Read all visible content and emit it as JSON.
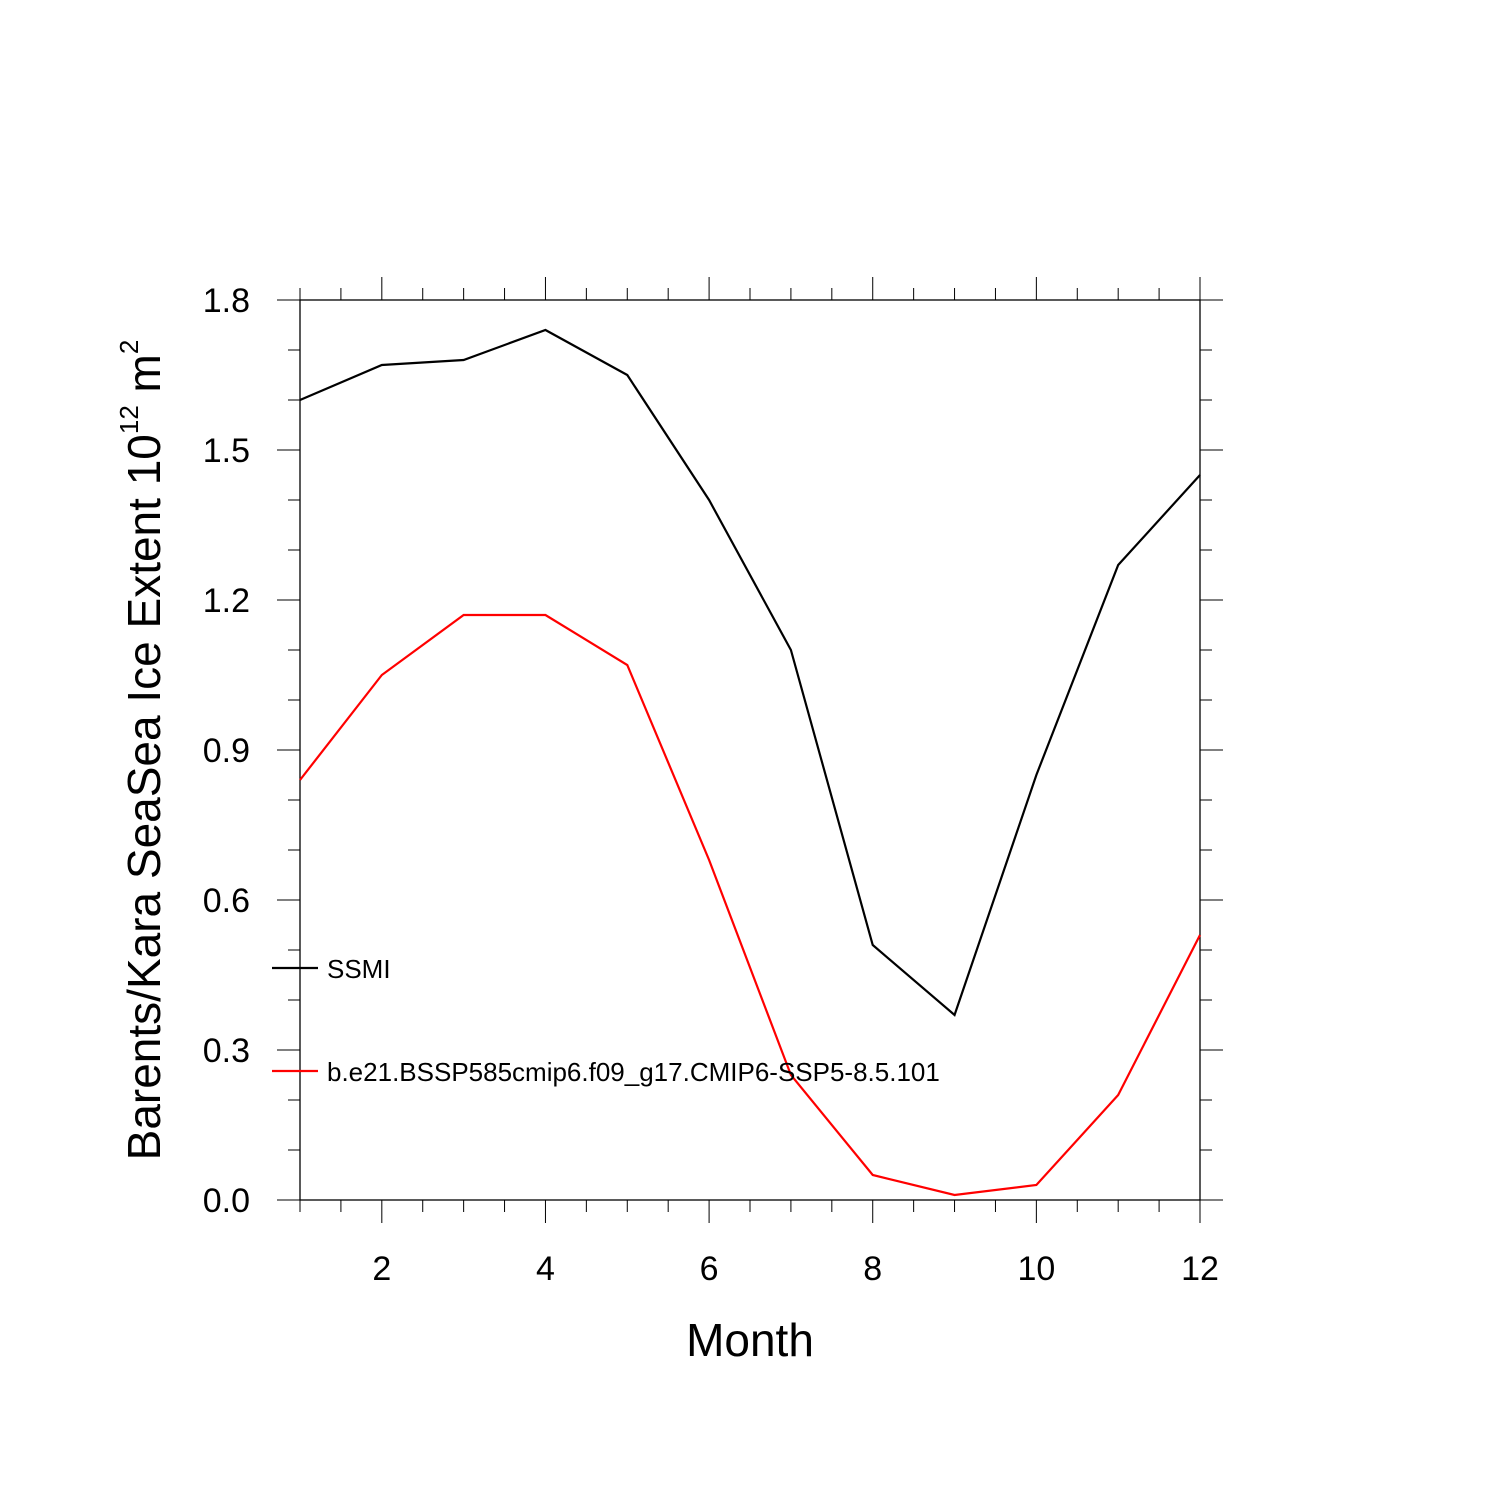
{
  "chart_data": {
    "type": "line",
    "xlabel": "Month",
    "ylabel": [
      "Barents/Kara SeaSea Ice Extent 10",
      "12",
      " m",
      "2"
    ],
    "x": [
      1,
      2,
      3,
      4,
      5,
      6,
      7,
      8,
      9,
      10,
      11,
      12
    ],
    "series": [
      {
        "name": "SSMI",
        "color": "#000000",
        "values": [
          1.6,
          1.67,
          1.68,
          1.74,
          1.65,
          1.4,
          1.1,
          0.51,
          0.37,
          0.85,
          1.27,
          1.45
        ]
      },
      {
        "name": "b.e21.BSSP585cmip6.f09_g17.CMIP6-SSP5-8.5.101",
        "color": "#ff0000",
        "values": [
          0.84,
          1.05,
          1.17,
          1.17,
          1.07,
          0.68,
          0.25,
          0.05,
          0.01,
          0.03,
          0.21,
          0.53
        ]
      }
    ],
    "xlim": [
      1,
      12
    ],
    "xticks": [
      2,
      4,
      6,
      8,
      10,
      12
    ],
    "ylim": [
      0,
      1.8
    ],
    "yticks": [
      {
        "value": 0,
        "label": "0.0"
      },
      0.3,
      0.6,
      0.9,
      1.2,
      1.5,
      1.8
    ],
    "grid": false,
    "legend": "left"
  }
}
